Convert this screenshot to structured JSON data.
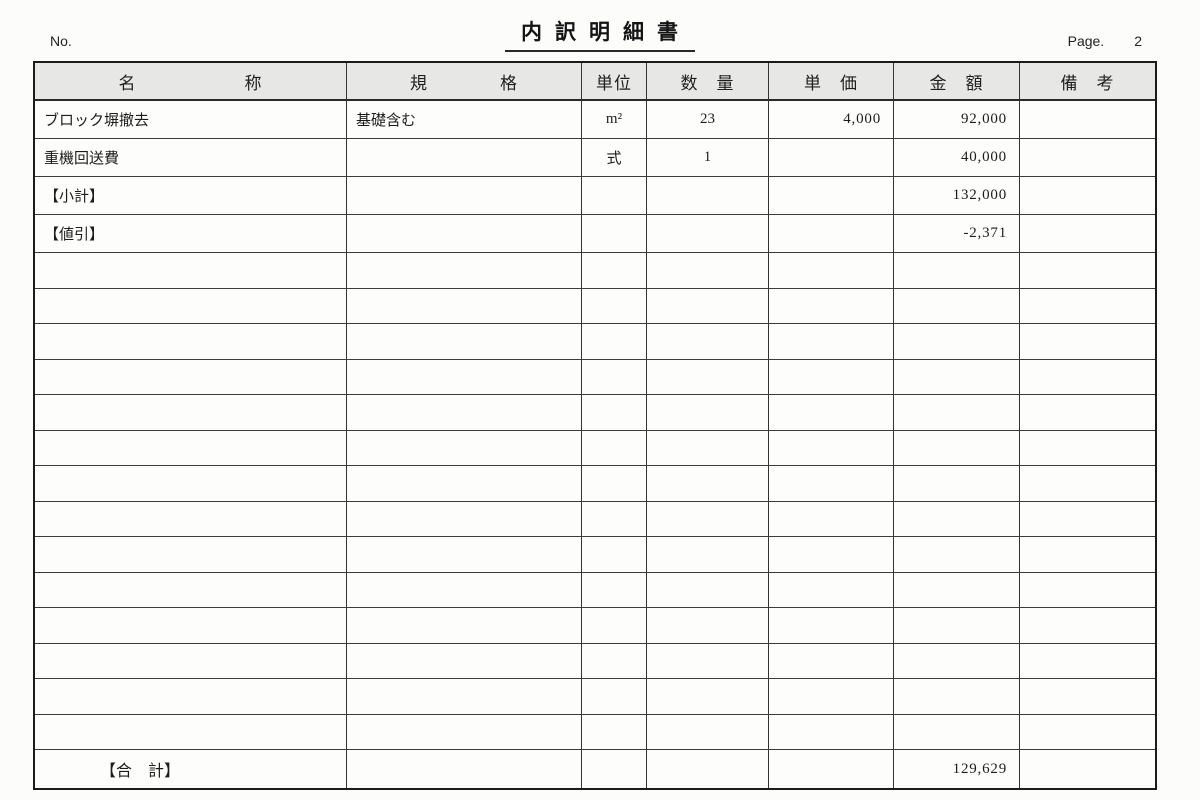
{
  "header": {
    "no_label": "No.",
    "title": "内訳明細書",
    "page_label": "Page.",
    "page_number": "2"
  },
  "table": {
    "columns": [
      {
        "key": "name",
        "label": "名　　　　　　称"
      },
      {
        "key": "spec",
        "label": "規　　　　格"
      },
      {
        "key": "unit",
        "label": "単位"
      },
      {
        "key": "qty",
        "label": "数　量"
      },
      {
        "key": "unit_price",
        "label": "単　価"
      },
      {
        "key": "amount",
        "label": "金　額"
      },
      {
        "key": "note",
        "label": "備　考"
      }
    ],
    "rows": [
      {
        "name": "ブロック塀撤去",
        "spec": "基礎含む",
        "unit": "m²",
        "qty": "23",
        "unit_price": "4,000",
        "amount": "92,000",
        "note": ""
      },
      {
        "name": "重機回送費",
        "spec": "",
        "unit": "式",
        "qty": "1",
        "unit_price": "",
        "amount": "40,000",
        "note": ""
      },
      {
        "name": "【小計】",
        "spec": "",
        "unit": "",
        "qty": "",
        "unit_price": "",
        "amount": "132,000",
        "note": ""
      },
      {
        "name": "【値引】",
        "spec": "",
        "unit": "",
        "qty": "",
        "unit_price": "",
        "amount": "-2,371",
        "note": ""
      }
    ],
    "empty_row_count": 14,
    "total_row": {
      "label": "【合　計】",
      "amount": "129,629"
    }
  }
}
